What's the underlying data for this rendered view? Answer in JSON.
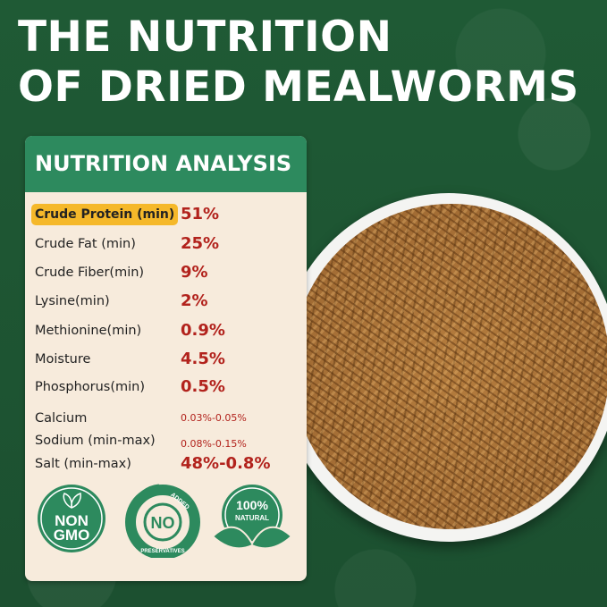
{
  "title": {
    "line1": "THE NUTRITION",
    "line2": "OF DRIED MEALWORMS"
  },
  "card": {
    "heading": "NUTRITION ANALYSIS",
    "rows": [
      {
        "label": "Crude Protein (min)",
        "value": "51%"
      },
      {
        "label": "Crude Fat (min)",
        "value": "25%"
      },
      {
        "label": "Crude Fiber(min)",
        "value": "9%"
      },
      {
        "label": "Lysine(min)",
        "value": "2%"
      },
      {
        "label": "Methionine(min)",
        "value": "0.9%"
      },
      {
        "label": "Moisture",
        "value": "4.5%"
      },
      {
        "label": "Phosphorus(min)",
        "value": "0.5%"
      },
      {
        "label": "Calcium",
        "value": "0.03%-0.05%"
      },
      {
        "label": "Sodium (min-max)",
        "value": "0.08%-0.15%"
      },
      {
        "label": "Salt (min-max)",
        "value": "48%-0.8%"
      }
    ]
  },
  "badges": {
    "non_gmo": [
      "NON",
      "GMO"
    ],
    "no_preservatives": {
      "top": "ADDED",
      "center": "NO",
      "bottom": "PRESERVATIVES"
    },
    "natural": [
      "100%",
      "NATURAL"
    ]
  },
  "colors": {
    "background": "#1f5533",
    "header": "#2d8a5e",
    "card": "#f7ebdc",
    "highlight": "#f5b82a",
    "value": "#b2221c"
  }
}
